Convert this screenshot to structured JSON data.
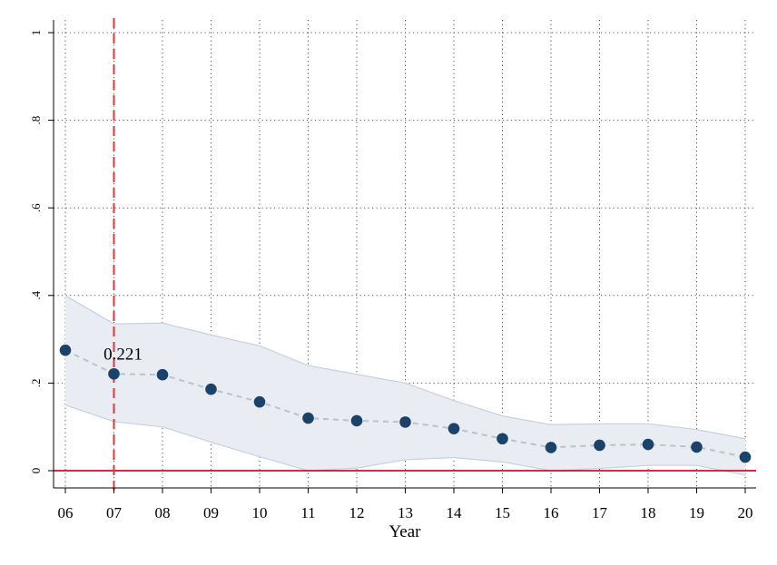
{
  "chart_data": {
    "type": "line",
    "title": "",
    "xlabel": "Year",
    "ylabel": "",
    "categories": [
      "06",
      "07",
      "08",
      "09",
      "10",
      "11",
      "12",
      "13",
      "14",
      "15",
      "16",
      "17",
      "18",
      "19",
      "20"
    ],
    "series": [
      {
        "values": [
          0.275,
          0.221,
          0.219,
          0.186,
          0.157,
          0.12,
          0.114,
          0.111,
          0.096,
          0.073,
          0.053,
          0.058,
          0.06,
          0.054,
          0.031
        ]
      }
    ],
    "ci_upper": [
      0.4,
      0.335,
      0.337,
      0.31,
      0.285,
      0.24,
      0.22,
      0.2,
      0.16,
      0.125,
      0.105,
      0.107,
      0.107,
      0.094,
      0.073
    ],
    "ci_lower": [
      0.15,
      0.112,
      0.1,
      0.065,
      0.032,
      0.0,
      0.006,
      0.025,
      0.03,
      0.02,
      0.0,
      0.005,
      0.012,
      0.012,
      -0.01
    ],
    "ylim": [
      -0.035,
      1.03
    ],
    "yticks": [
      0,
      0.2,
      0.4,
      0.6,
      0.8,
      1
    ],
    "ytick_labels": [
      "0",
      ".2",
      ".4",
      ".6",
      ".8",
      "1"
    ],
    "reference_vline": "07",
    "reference_hline": 0,
    "annotation": {
      "text": "0.221",
      "category": "07"
    },
    "grid": true,
    "colors": {
      "marker": "#1b4369",
      "ci_fill": "#e9edf3",
      "ci_edge": "#c7d0dc",
      "connect": "#b8c3d0",
      "vline": "#e0353a",
      "hline": "#c8102e",
      "grid": "#555555"
    }
  }
}
